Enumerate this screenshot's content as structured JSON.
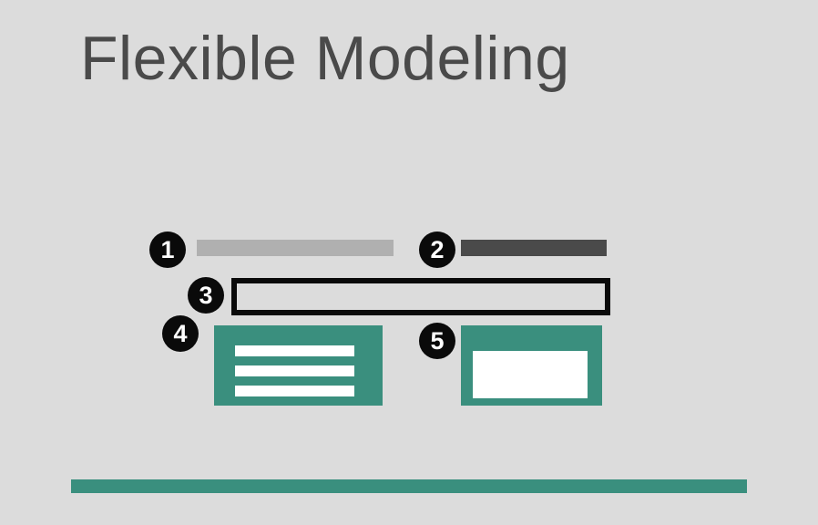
{
  "title": "Flexible Modeling",
  "badges": [
    "1",
    "2",
    "3",
    "4",
    "5"
  ],
  "colors": {
    "background": "#dcdcdc",
    "title_text": "#4a4a4a",
    "badge": "#0a0a0a",
    "light_bar": "#b0b0b0",
    "dark_bar": "#4a4a4a",
    "accent": "#3a8f7e",
    "white": "#ffffff"
  }
}
